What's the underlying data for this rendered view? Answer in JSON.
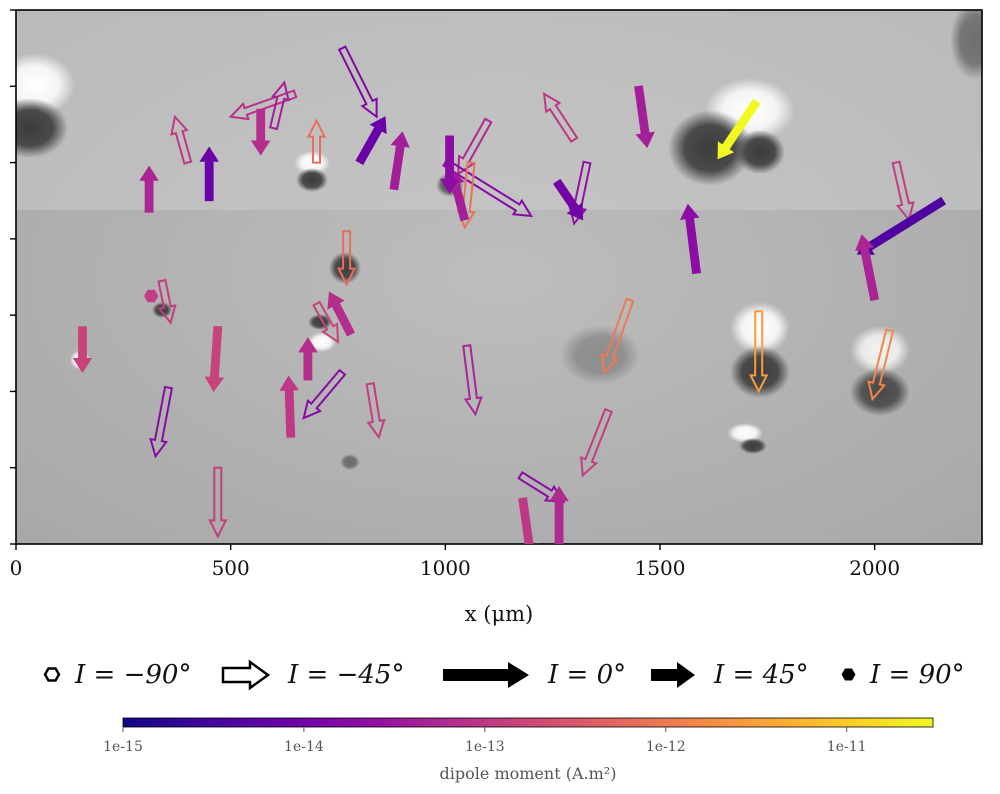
{
  "chart_data": {
    "type": "scatter",
    "title": "",
    "xlabel": "x (μm)",
    "ylabel": "",
    "xlim": [
      0,
      2250
    ],
    "xticks": [
      0,
      500,
      1000,
      1500,
      2000
    ],
    "xtick_labels": [
      "0",
      "500",
      "1000",
      "1500",
      "2000"
    ],
    "ylim": [
      0,
      1400
    ],
    "yticks": [
      0,
      200,
      400,
      600,
      800,
      1000,
      1200,
      1400
    ],
    "background": "grayscale magnetic field map",
    "legend": {
      "placement": "below plot",
      "items": [
        {
          "marker": "open hexagon",
          "label": "I = −90°"
        },
        {
          "marker": "open arrow",
          "label": "I = −45°"
        },
        {
          "marker": "long solid arrow",
          "label": "I = 0°"
        },
        {
          "marker": "short solid arrow",
          "label": "I = 45°"
        },
        {
          "marker": "solid hexagon",
          "label": "I = 90°"
        }
      ]
    },
    "colorbar": {
      "colormap": "plasma",
      "scale": "log",
      "range": [
        1e-15,
        3e-11
      ],
      "tick_labels": [
        "1e-15",
        "1e-14",
        "1e-13",
        "1e-12",
        "1e-11"
      ],
      "label": "dipole moment (A.m²)"
    },
    "series": [
      {
        "values": [
          {
            "x": 400,
            "y": 1000,
            "dx": -30,
            "dy": 120,
            "inclination": -45,
            "moment": 1e-13
          },
          {
            "x": 650,
            "y": 1180,
            "dx": -150,
            "dy": -60,
            "inclination": -45,
            "moment": 8e-14
          },
          {
            "x": 760,
            "y": 1300,
            "dx": 80,
            "dy": -180,
            "inclination": -45,
            "moment": 1.5e-14
          },
          {
            "x": 600,
            "y": 1090,
            "dx": 25,
            "dy": 120,
            "inclination": -45,
            "moment": 4e-14
          },
          {
            "x": 700,
            "y": 1000,
            "dx": 0,
            "dy": 110,
            "inclination": -45,
            "moment": 7e-13
          },
          {
            "x": 1100,
            "y": 1110,
            "dx": -70,
            "dy": -140,
            "inclination": -45,
            "moment": 6e-14
          },
          {
            "x": 1000,
            "y": 1000,
            "dx": 200,
            "dy": -140,
            "inclination": -45,
            "moment": 1.8e-14
          },
          {
            "x": 1060,
            "y": 1000,
            "dx": -15,
            "dy": -170,
            "inclination": -45,
            "moment": 8e-13
          },
          {
            "x": 1300,
            "y": 1060,
            "dx": -70,
            "dy": 120,
            "inclination": -45,
            "moment": 1e-13
          },
          {
            "x": 1330,
            "y": 1000,
            "dx": -30,
            "dy": -160,
            "inclination": -45,
            "moment": 2.5e-14
          },
          {
            "x": 2050,
            "y": 1000,
            "dx": 30,
            "dy": -150,
            "inclination": -45,
            "moment": 1.2e-13
          },
          {
            "x": 770,
            "y": 820,
            "dx": 0,
            "dy": -140,
            "inclination": -45,
            "moment": 7e-13
          },
          {
            "x": 340,
            "y": 690,
            "dx": 20,
            "dy": -110,
            "inclination": -45,
            "moment": 1.2e-13
          },
          {
            "x": 700,
            "y": 630,
            "dx": 50,
            "dy": -100,
            "inclination": -45,
            "moment": 1.5e-13
          },
          {
            "x": 355,
            "y": 410,
            "dx": -30,
            "dy": -180,
            "inclination": -45,
            "moment": 1.8e-14
          },
          {
            "x": 825,
            "y": 420,
            "dx": 20,
            "dy": -140,
            "inclination": -45,
            "moment": 1.2e-13
          },
          {
            "x": 760,
            "y": 450,
            "dx": -90,
            "dy": -120,
            "inclination": -45,
            "moment": 1.8e-14
          },
          {
            "x": 1050,
            "y": 520,
            "dx": 20,
            "dy": -180,
            "inclination": -45,
            "moment": 5e-14
          },
          {
            "x": 1430,
            "y": 640,
            "dx": -60,
            "dy": -190,
            "inclination": -45,
            "moment": 1e-12
          },
          {
            "x": 1380,
            "y": 350,
            "dx": -60,
            "dy": -170,
            "inclination": -45,
            "moment": 1.2e-13
          },
          {
            "x": 1175,
            "y": 180,
            "dx": 100,
            "dy": -70,
            "inclination": -45,
            "moment": 2e-14
          },
          {
            "x": 470,
            "y": 200,
            "dx": 0,
            "dy": -180,
            "inclination": -45,
            "moment": 1.2e-13
          },
          {
            "x": 1730,
            "y": 610,
            "dx": 0,
            "dy": -210,
            "inclination": -45,
            "moment": 3e-12
          },
          {
            "x": 2035,
            "y": 560,
            "dx": -40,
            "dy": -180,
            "inclination": -45,
            "moment": 1.5e-12
          },
          {
            "x": 1725,
            "y": 1160,
            "dx": -90,
            "dy": -150,
            "inclination": 45,
            "moment": 3e-11
          },
          {
            "x": 2160,
            "y": 900,
            "dx": -200,
            "dy": -140,
            "inclination": 45,
            "moment": 4e-15
          },
          {
            "x": 450,
            "y": 900,
            "dx": 0,
            "dy": 140,
            "inclination": 45,
            "moment": 8e-15
          },
          {
            "x": 310,
            "y": 870,
            "dx": 0,
            "dy": 120,
            "inclination": 45,
            "moment": 5e-14
          },
          {
            "x": 570,
            "y": 1140,
            "dx": 0,
            "dy": -120,
            "inclination": 45,
            "moment": 7e-14
          },
          {
            "x": 800,
            "y": 1000,
            "dx": 60,
            "dy": 120,
            "inclination": 45,
            "moment": 8e-15
          },
          {
            "x": 880,
            "y": 930,
            "dx": 20,
            "dy": 150,
            "inclination": 45,
            "moment": 4e-14
          },
          {
            "x": 1045,
            "y": 850,
            "dx": -30,
            "dy": 130,
            "inclination": 45,
            "moment": 4e-14
          },
          {
            "x": 1010,
            "y": 1070,
            "dx": 0,
            "dy": -150,
            "inclination": 45,
            "moment": 2e-14
          },
          {
            "x": 1260,
            "y": 950,
            "dx": 60,
            "dy": -100,
            "inclination": 45,
            "moment": 1e-14
          },
          {
            "x": 1450,
            "y": 1200,
            "dx": 20,
            "dy": -160,
            "inclination": 45,
            "moment": 4e-14
          },
          {
            "x": 1585,
            "y": 710,
            "dx": -20,
            "dy": 180,
            "inclination": 45,
            "moment": 2e-14
          },
          {
            "x": 2000,
            "y": 640,
            "dx": -30,
            "dy": 170,
            "inclination": 45,
            "moment": 5e-14
          },
          {
            "x": 155,
            "y": 570,
            "dx": 0,
            "dy": -120,
            "inclination": 45,
            "moment": 1.5e-13
          },
          {
            "x": 470,
            "y": 570,
            "dx": -10,
            "dy": -170,
            "inclination": 45,
            "moment": 1.5e-13
          },
          {
            "x": 640,
            "y": 280,
            "dx": -5,
            "dy": 160,
            "inclination": 45,
            "moment": 1e-13
          },
          {
            "x": 780,
            "y": 550,
            "dx": -50,
            "dy": 110,
            "inclination": 45,
            "moment": 7e-14
          },
          {
            "x": 680,
            "y": 430,
            "dx": 0,
            "dy": 110,
            "inclination": 45,
            "moment": 7e-14
          },
          {
            "x": 1180,
            "y": 120,
            "dx": 20,
            "dy": -160,
            "inclination": 45,
            "moment": 1e-13
          },
          {
            "x": 1265,
            "y": 0,
            "dx": 0,
            "dy": 150,
            "inclination": 45,
            "moment": 6e-14
          },
          {
            "x": 315,
            "y": 650,
            "dx": 0,
            "dy": 0,
            "inclination": 90,
            "moment": 1.2e-13
          }
        ]
      }
    ]
  }
}
